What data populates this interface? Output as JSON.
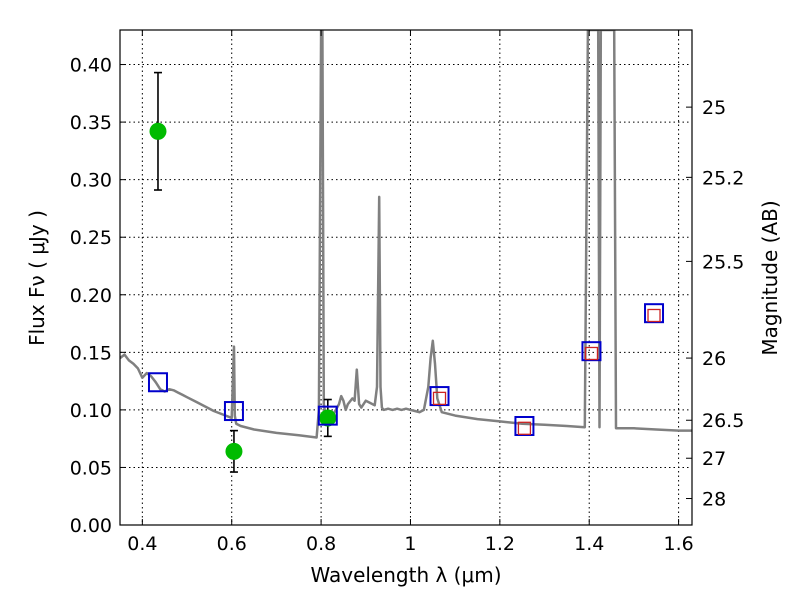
{
  "chart_data": {
    "type": "line",
    "title": "",
    "xlabel": "Wavelength  λ (μm)",
    "ylabel": "Flux  Fν  ( μJy )",
    "ylabel_right": "Magnitude (AB)",
    "xlim": [
      0.35,
      1.63
    ],
    "ylim": [
      0.0,
      0.43
    ],
    "xticks": [
      0.4,
      0.6,
      0.8,
      1.0,
      1.2,
      1.4,
      1.6
    ],
    "xtick_labels": [
      "0.4",
      "0.6",
      "0.8",
      "1",
      "1.2",
      "1.4",
      "1.6"
    ],
    "yticks": [
      0.0,
      0.05,
      0.1,
      0.15,
      0.2,
      0.25,
      0.3,
      0.35,
      0.4
    ],
    "ytick_labels": [
      "0.00",
      "0.05",
      "0.10",
      "0.15",
      "0.20",
      "0.25",
      "0.30",
      "0.35",
      "0.40"
    ],
    "right_ticks": [
      {
        "label": "25",
        "flux": 0.363
      },
      {
        "label": "25.2",
        "flux": 0.302
      },
      {
        "label": "25.5",
        "flux": 0.229
      },
      {
        "label": "26",
        "flux": 0.145
      },
      {
        "label": "26.5",
        "flux": 0.091
      },
      {
        "label": "27",
        "flux": 0.058
      },
      {
        "label": "28",
        "flux": 0.023
      }
    ],
    "grid": true,
    "series": [
      {
        "kind": "line",
        "color": "#808080",
        "x": [
          0.35,
          0.36,
          0.37,
          0.38,
          0.39,
          0.4,
          0.41,
          0.42,
          0.43,
          0.44,
          0.45,
          0.46,
          0.47,
          0.48,
          0.49,
          0.5,
          0.52,
          0.54,
          0.56,
          0.58,
          0.6,
          0.605,
          0.607,
          0.61,
          0.62,
          0.65,
          0.7,
          0.75,
          0.79,
          0.795,
          0.8,
          0.803,
          0.806,
          0.81,
          0.82,
          0.83,
          0.84,
          0.845,
          0.85,
          0.855,
          0.86,
          0.87,
          0.875,
          0.88,
          0.885,
          0.89,
          0.9,
          0.91,
          0.92,
          0.925,
          0.93,
          0.933,
          0.936,
          0.94,
          0.95,
          0.96,
          0.97,
          0.98,
          0.99,
          1.0,
          1.01,
          1.02,
          1.03,
          1.04,
          1.045,
          1.05,
          1.055,
          1.06,
          1.07,
          1.08,
          1.1,
          1.15,
          1.2,
          1.25,
          1.3,
          1.35,
          1.39,
          1.397,
          1.4,
          1.403,
          1.41,
          1.42,
          1.423,
          1.426,
          1.43,
          1.44,
          1.45,
          1.456,
          1.46,
          1.5,
          1.55,
          1.6,
          1.63
        ],
        "y": [
          0.145,
          0.148,
          0.143,
          0.14,
          0.136,
          0.128,
          0.132,
          0.129,
          0.124,
          0.118,
          0.116,
          0.118,
          0.117,
          0.115,
          0.113,
          0.111,
          0.107,
          0.103,
          0.099,
          0.096,
          0.093,
          0.155,
          0.095,
          0.088,
          0.086,
          0.083,
          0.08,
          0.078,
          0.076,
          0.1,
          0.43,
          0.43,
          0.105,
          0.095,
          0.09,
          0.098,
          0.105,
          0.112,
          0.108,
          0.1,
          0.105,
          0.11,
          0.108,
          0.135,
          0.105,
          0.102,
          0.108,
          0.106,
          0.104,
          0.12,
          0.285,
          0.12,
          0.102,
          0.1,
          0.101,
          0.1,
          0.101,
          0.1,
          0.101,
          0.1,
          0.099,
          0.098,
          0.1,
          0.12,
          0.145,
          0.16,
          0.14,
          0.11,
          0.098,
          0.097,
          0.095,
          0.092,
          0.09,
          0.088,
          0.087,
          0.086,
          0.085,
          0.43,
          0.43,
          0.43,
          0.43,
          0.43,
          0.085,
          0.43,
          0.43,
          0.43,
          0.43,
          0.43,
          0.084,
          0.084,
          0.083,
          0.082,
          0.082
        ]
      },
      {
        "kind": "scatter",
        "marker": "circle",
        "color": "#00bb00",
        "x": [
          0.435,
          0.605,
          0.815
        ],
        "y": [
          0.342,
          0.064,
          0.093
        ],
        "yerr_low": [
          0.291,
          0.046,
          0.077
        ],
        "yerr_high": [
          0.393,
          0.082,
          0.109
        ]
      },
      {
        "kind": "scatter",
        "marker": "open-square",
        "color": "#0000cc",
        "x": [
          0.435,
          0.605,
          0.815,
          1.065,
          1.255,
          1.405,
          1.545
        ],
        "y": [
          0.124,
          0.099,
          0.095,
          0.112,
          0.086,
          0.151,
          0.184
        ]
      },
      {
        "kind": "scatter",
        "marker": "open-square-small",
        "color": "#cc2222",
        "x": [
          1.065,
          1.255,
          1.405,
          1.545
        ],
        "y": [
          0.11,
          0.084,
          0.149,
          0.182
        ]
      }
    ]
  }
}
